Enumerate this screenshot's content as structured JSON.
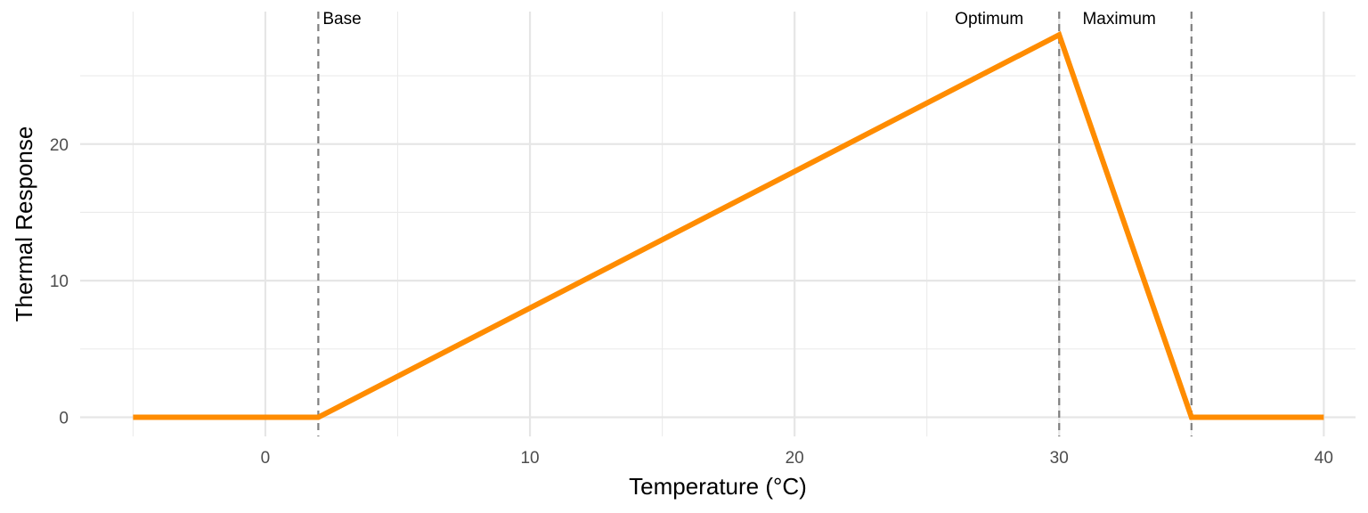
{
  "chart_data": {
    "type": "line",
    "title": "",
    "xlabel": "Temperature (°C)",
    "ylabel": "Thermal Response",
    "xlim": [
      -7,
      41.2
    ],
    "ylim": [
      -1.4,
      29.7
    ],
    "x_ticks": [
      0,
      10,
      20,
      30,
      40
    ],
    "y_ticks": [
      0,
      10,
      20
    ],
    "x_minor_ticks": [
      -5,
      5,
      15,
      25,
      35
    ],
    "y_minor_ticks": [
      5,
      15,
      25
    ],
    "grid": true,
    "legend": "none",
    "series": [
      {
        "color": "#FF8C00",
        "x": [
          -5,
          2,
          30,
          35,
          40
        ],
        "y": [
          0,
          0,
          28,
          0,
          0
        ]
      }
    ],
    "vlines": [
      {
        "x": 2,
        "label": "Base",
        "label_anchor": "start"
      },
      {
        "x": 30,
        "label": "Optimum",
        "label_anchor": "end"
      },
      {
        "x": 35,
        "label": "Maximum",
        "label_anchor": "end"
      }
    ],
    "vline_color": "#7f7f7f"
  }
}
